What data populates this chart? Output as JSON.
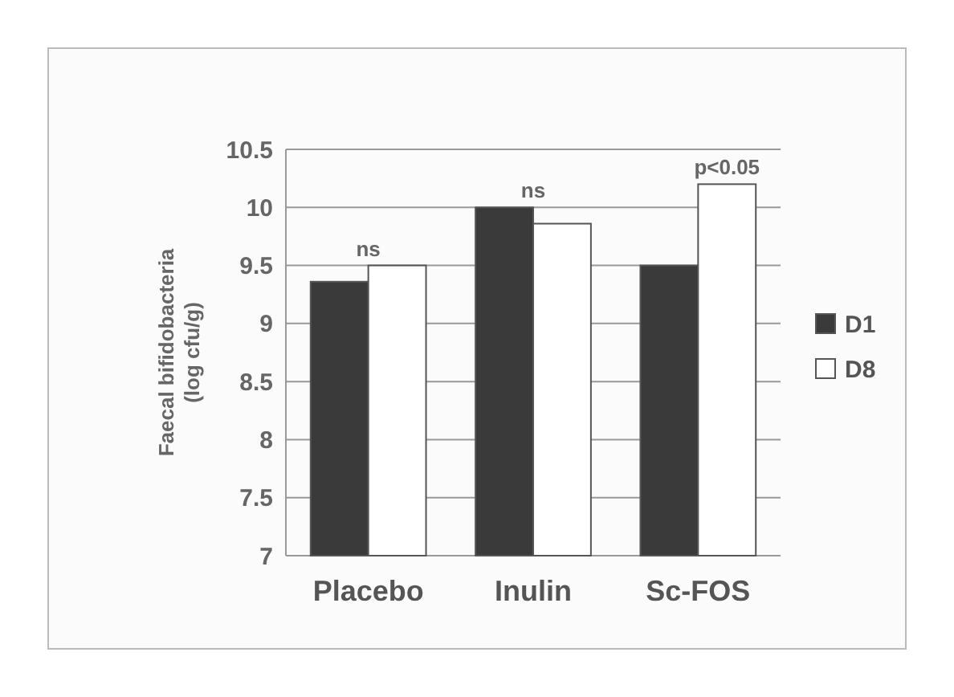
{
  "chart_data": {
    "type": "bar",
    "ylabel": "Faecal bifidobacteria\n(log cfu/g)",
    "categories": [
      "Placebo",
      "Inulin",
      "Sc-FOS"
    ],
    "series": [
      {
        "name": "D1",
        "color": "#3a3a3a",
        "values": [
          9.36,
          10.0,
          9.5
        ]
      },
      {
        "name": "D8",
        "color": "#ffffff",
        "values": [
          9.5,
          9.86,
          10.2
        ]
      }
    ],
    "ylim": [
      7,
      10.5
    ],
    "yticks": [
      7,
      7.5,
      8,
      8.5,
      9,
      9.5,
      10,
      10.5
    ],
    "grid": "y",
    "legend": "right",
    "annotations": [
      {
        "text": "ns",
        "x": "Placebo",
        "y": 9.5
      },
      {
        "text": "ns",
        "x": "Inulin",
        "y": 10.0
      },
      {
        "text": "p<0.05",
        "x": "Sc-FOS",
        "y": 10.2
      }
    ]
  }
}
